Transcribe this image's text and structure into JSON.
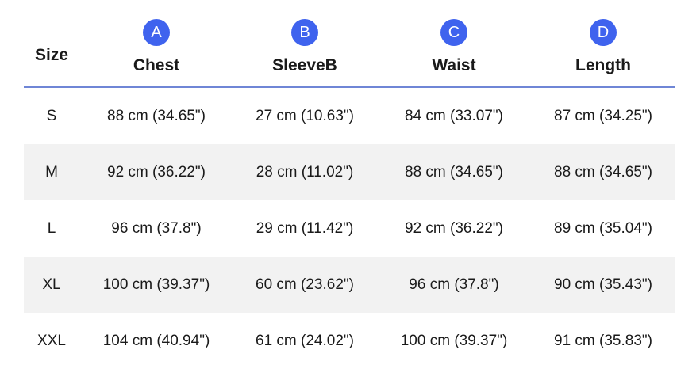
{
  "header": {
    "size_label": "Size",
    "columns": [
      {
        "badge": "A",
        "label": "Chest"
      },
      {
        "badge": "B",
        "label": "SleeveB"
      },
      {
        "badge": "C",
        "label": "Waist"
      },
      {
        "badge": "D",
        "label": "Length"
      }
    ]
  },
  "rows": [
    {
      "size": "S",
      "chest": "88 cm (34.65\")",
      "sleeve": "27 cm (10.63\")",
      "waist": "84 cm (33.07\")",
      "length": "87 cm (34.25\")"
    },
    {
      "size": "M",
      "chest": "92 cm (36.22\")",
      "sleeve": "28 cm (11.02\")",
      "waist": "88 cm (34.65\")",
      "length": "88 cm (34.65\")"
    },
    {
      "size": "L",
      "chest": "96 cm (37.8\")",
      "sleeve": "29 cm (11.42\")",
      "waist": "92 cm (36.22\")",
      "length": "89 cm (35.04\")"
    },
    {
      "size": "XL",
      "chest": "100 cm (39.37\")",
      "sleeve": "60 cm (23.62\")",
      "waist": "96 cm (37.8\")",
      "length": "90 cm (35.43\")"
    },
    {
      "size": "XXL",
      "chest": "104 cm (40.94\")",
      "sleeve": "61 cm (24.02\")",
      "waist": "100 cm (39.37\")",
      "length": "91 cm (35.83\")"
    }
  ],
  "colors": {
    "badge": "#3f63ee",
    "header_rule": "#6f86d6",
    "row_shade": "#f2f2f2"
  }
}
